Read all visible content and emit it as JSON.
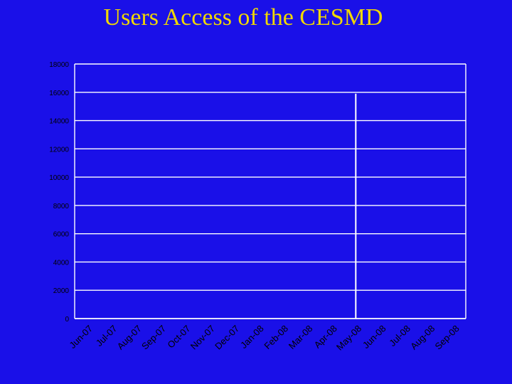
{
  "slide": {
    "title": "Users Access of the CESMD",
    "background": "#1a10e8",
    "title_color": "#f0d800"
  },
  "chart_data": {
    "type": "bar",
    "title": "",
    "xlabel": "",
    "ylabel": "",
    "categories": [
      "Jun-07",
      "Jul-07",
      "Aug-07",
      "Sep-07",
      "Oct-07",
      "Nov-07",
      "Dec-07",
      "Jan-08",
      "Feb-08",
      "Mar-08",
      "Apr-08",
      "May-08",
      "Jun-08",
      "Jul-08",
      "Aug-08",
      "Sep-08"
    ],
    "values": [
      0,
      0,
      0,
      0,
      0,
      0,
      0,
      0,
      0,
      0,
      0,
      15900,
      0,
      0,
      0,
      0
    ],
    "ylim": [
      0,
      18000
    ],
    "yticks": [
      "18000",
      "16000",
      "14000",
      "12000",
      "10000",
      "8000",
      "6000",
      "4000",
      "2000",
      "0"
    ],
    "grid": true,
    "gridline_color": "#ffffff",
    "axis_color": "#ffffff",
    "tick_label_color": "#000000"
  }
}
